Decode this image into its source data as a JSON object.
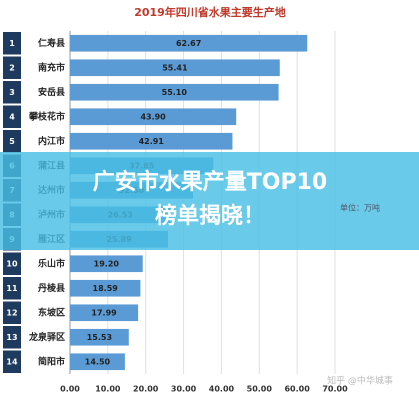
{
  "chart_data": {
    "type": "bar",
    "orientation": "horizontal",
    "title": "2019年四川省水果主要生产地",
    "ranks": [
      1,
      2,
      3,
      4,
      5,
      6,
      7,
      8,
      9,
      10,
      11,
      12,
      13,
      14
    ],
    "categories": [
      "仁寿县",
      "南充市",
      "安岳县",
      "攀枝花市",
      "内江市",
      "蒲江县",
      "达州市",
      "泸州市",
      "雁江区",
      "乐山市",
      "丹棱县",
      "东坡区",
      "龙泉驿区",
      "简阳市"
    ],
    "values": [
      62.67,
      55.41,
      55.1,
      43.9,
      42.91,
      37.85,
      32.5,
      26.53,
      25.89,
      19.2,
      18.59,
      17.99,
      15.53,
      14.5
    ],
    "value_labels": [
      "62.67",
      "55.41",
      "55.10",
      "43.90",
      "42.91",
      "37.85",
      "32.50",
      "26.53",
      "25.89",
      "19.20",
      "18.59",
      "17.99",
      "15.53",
      "14.50"
    ],
    "color": "#5b9bd5",
    "xlim": [
      0,
      70
    ],
    "xticks": [
      {
        "value": 0,
        "label": "0.00"
      },
      {
        "value": 10,
        "label": "10.00"
      },
      {
        "value": 20,
        "label": "20.00"
      },
      {
        "value": 30,
        "label": "30.00"
      },
      {
        "value": 40,
        "label": "40.00"
      },
      {
        "value": 50,
        "label": "50.00"
      },
      {
        "value": 60,
        "label": "60.00"
      },
      {
        "value": 70,
        "label": "70.00"
      }
    ],
    "grid": true,
    "unit": "单位：万吨",
    "banner": [
      "广安市水果产量TOP10",
      "榜单揭晓！"
    ],
    "watermark": "知乎 @中华城事"
  }
}
